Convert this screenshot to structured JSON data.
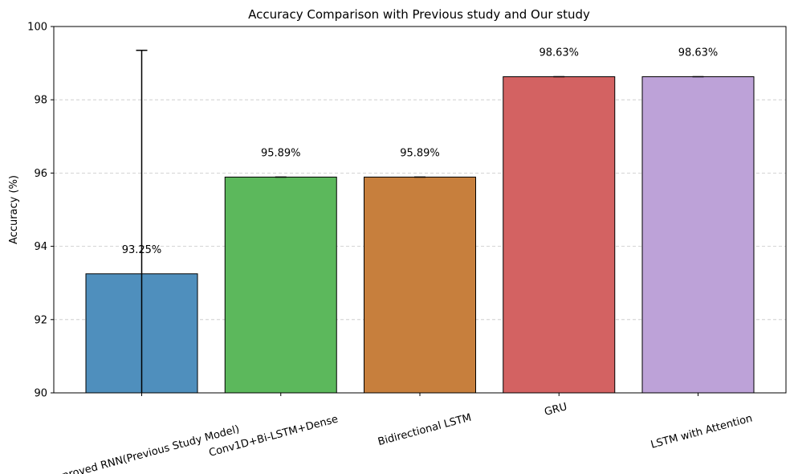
{
  "chart_data": {
    "type": "bar",
    "title": "Accuracy Comparison with Previous study and Our study",
    "xlabel": "",
    "ylabel": "Accuracy (%)",
    "ylim": [
      90,
      100
    ],
    "yticks": [
      90,
      92,
      94,
      96,
      98,
      100
    ],
    "grid": "y-dashed",
    "categories": [
      "Improved RNN(Previous Study Model)",
      "Conv1D+Bi-LSTM+Dense",
      "Bidirectional LSTM",
      "GRU",
      "LSTM with Attention"
    ],
    "values": [
      93.25,
      95.89,
      95.89,
      98.63,
      98.63
    ],
    "errors": [
      6.1,
      0,
      0,
      0,
      0
    ],
    "value_labels": [
      "93.25%",
      "95.89%",
      "95.89%",
      "98.63%",
      "98.63%"
    ],
    "colors": [
      "#4f8fbd",
      "#5cb85c",
      "#c77f3d",
      "#d36262",
      "#bda2d8"
    ]
  }
}
